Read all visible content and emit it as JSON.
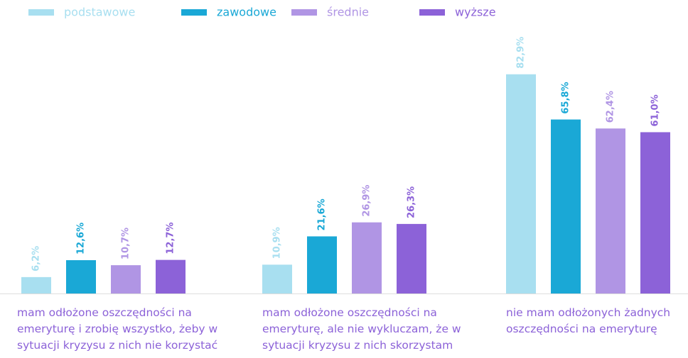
{
  "chart_data": {
    "type": "bar",
    "categories": [
      "mam odłożone oszczędności na emeryturę i zrobię wszystko, żeby w sytuacji kryzysu z nich nie korzystać",
      "mam odłożone oszczędności na emeryturę, ale nie wykluczam, że w sytuacji kryzysu z nich skorzystam",
      "nie mam odłożonych żadnych oszczędności na emeryturę"
    ],
    "series": [
      {
        "name": "podstawowe",
        "color": "#a8dff0",
        "values": [
          6.2,
          10.9,
          82.9
        ],
        "value_labels": [
          "6,2%",
          "10,9%",
          "82,9%"
        ]
      },
      {
        "name": "zawodowe",
        "color": "#1aa8d6",
        "values": [
          12.6,
          21.6,
          65.8
        ],
        "value_labels": [
          "12,6%",
          "21,6%",
          "65,8%"
        ]
      },
      {
        "name": "średnie",
        "color": "#b095e4",
        "values": [
          10.7,
          26.9,
          62.4
        ],
        "value_labels": [
          "10,7%",
          "26,9%",
          "62,4%"
        ]
      },
      {
        "name": "wyższe",
        "color": "#8c62d8",
        "values": [
          12.7,
          26.3,
          61.0
        ],
        "value_labels": [
          "12,7%",
          "26,3%",
          "61,0%"
        ]
      }
    ],
    "legend": "top"
  }
}
